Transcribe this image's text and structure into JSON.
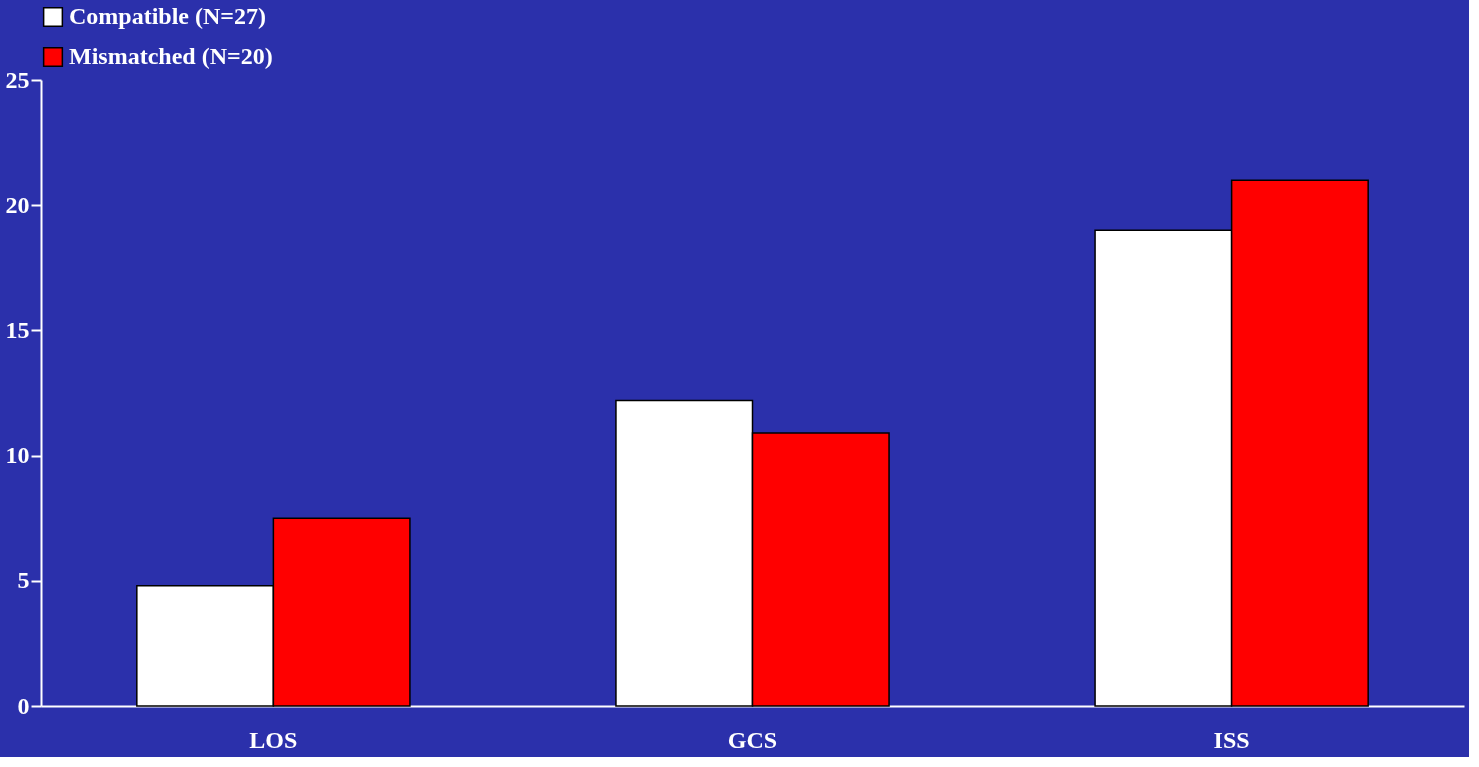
{
  "chart_data": {
    "type": "bar",
    "categories": [
      "LOS",
      "GCS",
      "ISS"
    ],
    "series": [
      {
        "name": "Compatible (N=27)",
        "color": "#ffffff",
        "values": [
          4.8,
          12.2,
          19.0
        ]
      },
      {
        "name": "Mismatched (N=20)",
        "color": "#ff0000",
        "values": [
          7.5,
          10.9,
          21.0
        ]
      }
    ],
    "ylim": [
      0,
      25
    ],
    "yticks": [
      0,
      5,
      10,
      15,
      20,
      25
    ],
    "grid": false,
    "legend": "top"
  }
}
